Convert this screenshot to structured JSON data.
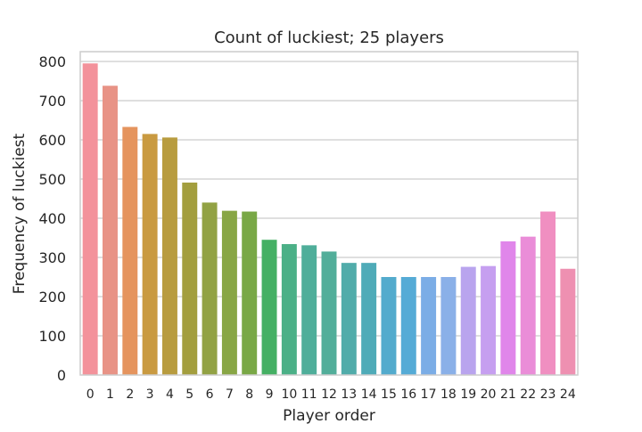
{
  "chart_data": {
    "type": "bar",
    "title": "Count of luckiest; 25 players",
    "xlabel": "Player order",
    "ylabel": "Frequency of luckiest",
    "ylim": [
      0,
      825
    ],
    "yticks": [
      0,
      100,
      200,
      300,
      400,
      500,
      600,
      700,
      800
    ],
    "grid": "horizontal",
    "legend": "none",
    "categories": [
      "0",
      "1",
      "2",
      "3",
      "4",
      "5",
      "6",
      "7",
      "8",
      "9",
      "10",
      "11",
      "12",
      "13",
      "14",
      "15",
      "16",
      "17",
      "18",
      "19",
      "20",
      "21",
      "22",
      "23",
      "24"
    ],
    "values": [
      795,
      738,
      633,
      615,
      606,
      491,
      440,
      419,
      417,
      345,
      334,
      331,
      315,
      286,
      286,
      250,
      250,
      250,
      250,
      276,
      278,
      341,
      353,
      417,
      271
    ],
    "colors": [
      "#f3929b",
      "#e89386",
      "#e5945e",
      "#c99a41",
      "#b89c3f",
      "#a39e3e",
      "#92a244",
      "#88a645",
      "#79a846",
      "#45b064",
      "#4bb087",
      "#4fae9a",
      "#52ae9a",
      "#51acaa",
      "#4fabb8",
      "#53abcd",
      "#55abd6",
      "#7bade6",
      "#8ab0e8",
      "#b9a4ee",
      "#c69ff0",
      "#e086ea",
      "#ea8dd8",
      "#f08fc1",
      "#ee90b1"
    ]
  }
}
